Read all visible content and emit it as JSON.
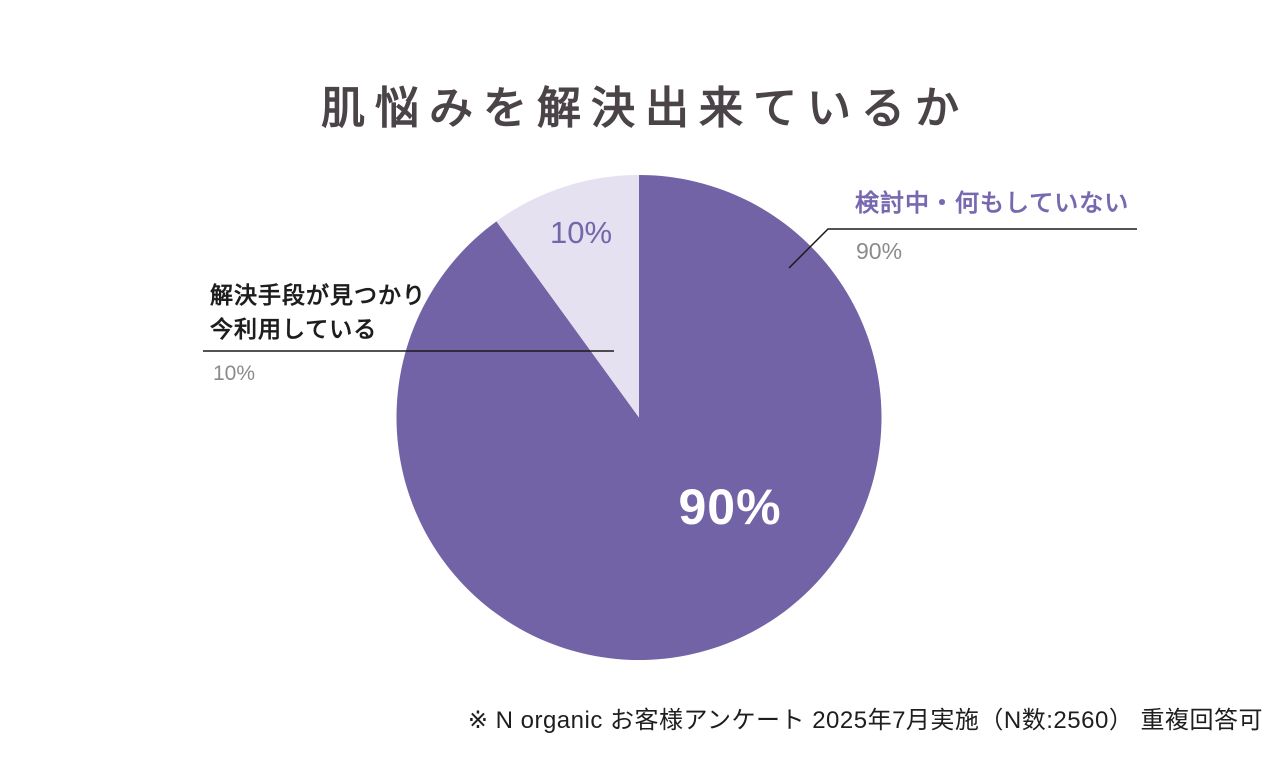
{
  "title": "肌悩みを解決出来ているか",
  "chart_data": {
    "type": "pie",
    "title": "肌悩みを解決出来ているか",
    "slices": [
      {
        "label": "検討中・何もしていない",
        "value": 90,
        "display": "90%",
        "color": "#7263A6"
      },
      {
        "label": "解決手段が見つかり今利用している",
        "value": 10,
        "display": "10%",
        "color": "#E5E1F0"
      }
    ],
    "start_angle": "12-oclock",
    "direction": "clockwise",
    "legend_position": "none",
    "source_note": "※ N organic お客様アンケート 2025年7月実施（N数:2560） 重複回答可"
  },
  "pie_labels": {
    "big": "90%",
    "small": "10%"
  },
  "annotations": {
    "right": {
      "label": "検討中・何もしていない",
      "value": "90%"
    },
    "left": {
      "label_line1": "解決手段が見つかり",
      "label_line2": "今利用している",
      "value": "10%"
    }
  },
  "footer": "※ N organic お客様アンケート 2025年7月実施（N数:2560） 重複回答可",
  "colors": {
    "slice_purple": "#7263A6",
    "slice_lavender": "#E5E1F0",
    "accent_purple_text": "#7768B0",
    "gray_value_text": "#8B8B8B",
    "title_text": "#4A4347",
    "leader_line": "#1A1A1A"
  }
}
